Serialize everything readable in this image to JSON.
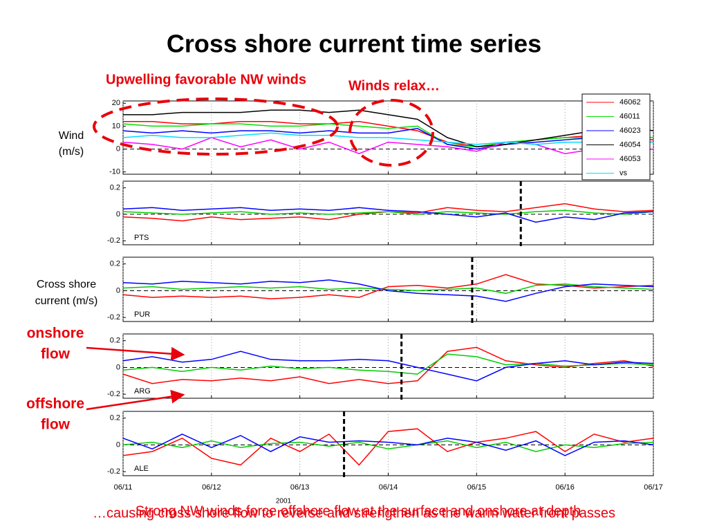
{
  "slide": {
    "title": "Cross shore current time series",
    "annotation_winds": "Upwelling favorable NW winds",
    "annotation_relax": "Winds relax…",
    "current_ylabel": [
      "Cross shore",
      "current (m/s)"
    ],
    "onshore": [
      "onshore",
      "flow"
    ],
    "offshore": [
      "offshore",
      "flow"
    ],
    "footer_1": "Strong NW winds force offshore flow at the surface and onshore at depth",
    "footer_2": "…causing cross shore flow to reverse and strengthen as the warm water front passes"
  },
  "chart_data": [
    {
      "type": "line",
      "ylabel": [
        "Wind",
        "(m/s)"
      ],
      "xlim": [
        11,
        17
      ],
      "ylim": [
        -11,
        21
      ],
      "yticks": [
        -10,
        0,
        10,
        20
      ],
      "xticks": [
        11,
        12,
        13,
        14,
        15,
        16,
        17
      ],
      "grid": true,
      "zero_line": true,
      "legend": "top-right",
      "x": [
        11,
        11.33,
        11.67,
        12,
        12.33,
        12.67,
        13,
        13.33,
        13.67,
        14,
        14.33,
        14.67,
        15,
        15.33,
        15.67,
        16,
        16.33,
        16.67,
        17
      ],
      "series": [
        {
          "name": "46062",
          "color": "#ff0000",
          "values": [
            12,
            12,
            11,
            11,
            12,
            12,
            11,
            11,
            12,
            10,
            8,
            3,
            1,
            2,
            4,
            5,
            6,
            5,
            4
          ]
        },
        {
          "name": "46011",
          "color": "#00dd00",
          "values": [
            11,
            10,
            10,
            11,
            11,
            10,
            10,
            11,
            10,
            9,
            10,
            2,
            1,
            3,
            4,
            5,
            5,
            6,
            5
          ]
        },
        {
          "name": "46023",
          "color": "#0000ff",
          "values": [
            8,
            7,
            8,
            7,
            8,
            8,
            7,
            8,
            7,
            7,
            9,
            2,
            0,
            2,
            3,
            4,
            5,
            4,
            3
          ]
        },
        {
          "name": "46054",
          "color": "#000000",
          "values": [
            15,
            15,
            16,
            16,
            16,
            17,
            17,
            16,
            17,
            15,
            13,
            5,
            1,
            2,
            4,
            6,
            8,
            10,
            8
          ]
        },
        {
          "name": "46053",
          "color": "#ff00ff",
          "values": [
            3,
            2,
            0,
            5,
            1,
            4,
            0,
            3,
            -2,
            3,
            2,
            1,
            -1,
            3,
            2,
            -2,
            0,
            -1,
            0
          ]
        },
        {
          "name": "vs",
          "color": "#00ddff",
          "values": [
            5,
            6,
            5,
            5,
            6,
            7,
            6,
            6,
            5,
            5,
            4,
            3,
            2,
            3,
            2,
            3,
            3,
            4,
            3
          ]
        }
      ]
    },
    {
      "type": "line",
      "label": "PTS",
      "xlim": [
        11,
        17
      ],
      "ylim": [
        -0.23,
        0.25
      ],
      "yticks": [
        -0.2,
        0,
        0.2
      ],
      "xticks": [
        11,
        12,
        13,
        14,
        15,
        16,
        17
      ],
      "grid": true,
      "zero_line": true,
      "front_x": 15.5,
      "x": [
        11,
        11.33,
        11.67,
        12,
        12.33,
        12.67,
        13,
        13.33,
        13.67,
        14,
        14.33,
        14.67,
        15,
        15.33,
        15.67,
        16,
        16.33,
        16.67,
        17
      ],
      "series": [
        {
          "color": "#ff0000",
          "values": [
            -0.02,
            -0.03,
            -0.05,
            -0.02,
            -0.04,
            -0.03,
            -0.02,
            -0.04,
            0.0,
            0.02,
            0.01,
            0.05,
            0.03,
            0.02,
            0.05,
            0.08,
            0.04,
            0.02,
            0.03
          ]
        },
        {
          "color": "#00cc00",
          "values": [
            0.02,
            0.01,
            0.0,
            0.01,
            0.02,
            0.0,
            0.01,
            0.0,
            0.01,
            0.02,
            0.0,
            0.02,
            0.01,
            0.0,
            0.02,
            0.03,
            0.01,
            0.0,
            0.02
          ]
        },
        {
          "color": "#0000ff",
          "values": [
            0.04,
            0.05,
            0.03,
            0.04,
            0.05,
            0.03,
            0.04,
            0.03,
            0.05,
            0.03,
            0.02,
            0.0,
            -0.02,
            0.01,
            -0.06,
            -0.02,
            -0.04,
            0.01,
            0.02
          ]
        }
      ]
    },
    {
      "type": "line",
      "label": "PUR",
      "xlim": [
        11,
        17
      ],
      "ylim": [
        -0.23,
        0.25
      ],
      "yticks": [
        -0.2,
        0,
        0.2
      ],
      "xticks": [
        11,
        12,
        13,
        14,
        15,
        16,
        17
      ],
      "grid": true,
      "zero_line": true,
      "front_x": 14.95,
      "x": [
        11,
        11.33,
        11.67,
        12,
        12.33,
        12.67,
        13,
        13.33,
        13.67,
        14,
        14.33,
        14.67,
        15,
        15.33,
        15.67,
        16,
        16.33,
        16.67,
        17
      ],
      "series": [
        {
          "color": "#ff0000",
          "values": [
            -0.03,
            -0.05,
            -0.04,
            -0.05,
            -0.04,
            -0.06,
            -0.05,
            -0.03,
            -0.05,
            0.03,
            0.04,
            0.02,
            0.05,
            0.12,
            0.05,
            0.04,
            0.02,
            0.03,
            0.04
          ]
        },
        {
          "color": "#00cc00",
          "values": [
            0.02,
            0.03,
            0.01,
            0.02,
            0.03,
            0.02,
            0.03,
            0.01,
            0.02,
            0.01,
            0.0,
            0.01,
            0.02,
            -0.02,
            0.04,
            0.05,
            0.03,
            0.02,
            0.01
          ]
        },
        {
          "color": "#0000ff",
          "values": [
            0.06,
            0.05,
            0.07,
            0.06,
            0.05,
            0.07,
            0.06,
            0.08,
            0.05,
            0.0,
            -0.02,
            -0.03,
            -0.04,
            -0.08,
            -0.02,
            0.03,
            0.05,
            0.04,
            0.03
          ]
        }
      ]
    },
    {
      "type": "line",
      "label": "ARG",
      "xlim": [
        11,
        17
      ],
      "ylim": [
        -0.23,
        0.25
      ],
      "yticks": [
        -0.2,
        0,
        0.2
      ],
      "xticks": [
        11,
        12,
        13,
        14,
        15,
        16,
        17
      ],
      "grid": true,
      "zero_line": true,
      "front_x": 14.15,
      "x": [
        11,
        11.33,
        11.67,
        12,
        12.33,
        12.67,
        13,
        13.33,
        13.67,
        14,
        14.33,
        14.67,
        15,
        15.33,
        15.67,
        16,
        16.33,
        16.67,
        17
      ],
      "series": [
        {
          "color": "#ff0000",
          "values": [
            -0.05,
            -0.12,
            -0.09,
            -0.1,
            -0.08,
            -0.1,
            -0.07,
            -0.12,
            -0.09,
            -0.12,
            -0.1,
            0.12,
            0.15,
            0.05,
            0.02,
            0.0,
            0.03,
            0.05,
            0.01
          ]
        },
        {
          "color": "#00cc00",
          "values": [
            -0.02,
            0.0,
            -0.03,
            0.0,
            -0.02,
            0.01,
            -0.01,
            0.0,
            -0.02,
            -0.03,
            -0.05,
            0.1,
            0.08,
            0.02,
            0.03,
            0.01,
            0.02,
            0.03,
            0.02
          ]
        },
        {
          "color": "#0000ff",
          "values": [
            0.05,
            0.08,
            0.04,
            0.06,
            0.12,
            0.06,
            0.05,
            0.05,
            0.06,
            0.05,
            0.0,
            -0.05,
            -0.1,
            0.0,
            0.03,
            0.05,
            0.02,
            0.04,
            0.03
          ]
        }
      ]
    },
    {
      "type": "line",
      "label": "ALE",
      "xlabel": "2001",
      "xlim": [
        11,
        17
      ],
      "ylim": [
        -0.23,
        0.25
      ],
      "yticks": [
        -0.2,
        0,
        0.2
      ],
      "xticks": [
        {
          "value": 11,
          "label": "06/11"
        },
        {
          "value": 12,
          "label": "06/12"
        },
        {
          "value": 13,
          "label": "06/13"
        },
        {
          "value": 14,
          "label": "06/14"
        },
        {
          "value": 15,
          "label": "06/15"
        },
        {
          "value": 16,
          "label": "06/16"
        },
        {
          "value": 17,
          "label": "06/17"
        }
      ],
      "grid": true,
      "zero_line": true,
      "front_x": 13.5,
      "x": [
        11,
        11.33,
        11.67,
        12,
        12.33,
        12.67,
        13,
        13.33,
        13.67,
        14,
        14.33,
        14.67,
        15,
        15.33,
        15.67,
        16,
        16.33,
        16.67,
        17
      ],
      "series": [
        {
          "color": "#ff0000",
          "values": [
            -0.08,
            -0.05,
            0.05,
            -0.1,
            -0.15,
            0.05,
            -0.05,
            0.08,
            -0.15,
            0.1,
            0.12,
            -0.05,
            0.02,
            0.05,
            0.1,
            -0.05,
            0.08,
            0.02,
            0.05
          ]
        },
        {
          "color": "#00cc00",
          "values": [
            0.0,
            0.02,
            -0.02,
            0.03,
            -0.02,
            0.01,
            0.02,
            -0.01,
            0.02,
            -0.03,
            0.0,
            0.03,
            -0.02,
            0.02,
            -0.05,
            0.0,
            -0.02,
            0.01,
            0.02
          ]
        },
        {
          "color": "#0000ff",
          "values": [
            0.05,
            -0.03,
            0.08,
            -0.02,
            0.07,
            -0.05,
            0.06,
            0.02,
            0.03,
            0.02,
            0.0,
            0.05,
            0.02,
            -0.04,
            0.03,
            -0.08,
            0.02,
            0.03,
            0.0
          ]
        }
      ]
    }
  ]
}
